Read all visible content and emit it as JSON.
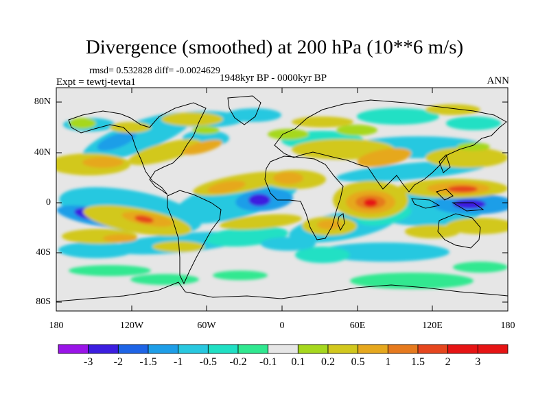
{
  "title": "Divergence (smoothed) at 200 hPa (10**6 m/s)",
  "stats": "rmsd= 0.532828 diff= -0.0024629",
  "experiment": "Expt = tewtj-tevta1",
  "period": "1948kyr BP - 0000kyr BP",
  "season": "ANN",
  "chart_data": {
    "type": "heatmap",
    "variable": "Divergence (smoothed) at 200 hPa",
    "units": "10**6 m/s",
    "projection": "cylindrical equidistant (global)",
    "x_ticks": [
      "180",
      "120W",
      "60W",
      "0",
      "60E",
      "120E",
      "180"
    ],
    "y_ticks": [
      "80N",
      "40N",
      "0",
      "40S",
      "80S"
    ],
    "lon_range": [
      -180,
      180
    ],
    "lat_range": [
      -90,
      90
    ],
    "colorbar": {
      "labels": [
        "-3",
        "-2",
        "-1.5",
        "-1",
        "-0.5",
        "-0.2",
        "-0.1",
        "0.1",
        "0.2",
        "0.5",
        "1",
        "1.5",
        "2",
        "3"
      ],
      "colors": [
        "#9a14e8",
        "#3c1ee0",
        "#1e64e6",
        "#1e9ee8",
        "#28c8e0",
        "#20e0c4",
        "#30e890",
        "#e6e6e6",
        "#a6d81e",
        "#d2c81e",
        "#e6a81e",
        "#e67a1e",
        "#e6461e",
        "#e61414"
      ]
    },
    "features": [
      {
        "name": "strong convergence minimum",
        "lon": -18,
        "lat": 0,
        "level": "-2"
      },
      {
        "name": "convergence minimum",
        "lon": 152,
        "lat": 0,
        "level": "-2"
      },
      {
        "name": "convergence minimum",
        "lon": -150,
        "lat": -10,
        "level": "-2"
      },
      {
        "name": "divergence maximum",
        "lon": 60,
        "lat": 0,
        "level": "3"
      },
      {
        "name": "divergence maximum",
        "lon": 128,
        "lat": 12,
        "level": "2"
      },
      {
        "name": "divergence maximum",
        "lon": -20,
        "lat": 15,
        "level": "1.5"
      },
      {
        "name": "divergence maximum",
        "lon": -128,
        "lat": -10,
        "level": "1.5"
      },
      {
        "name": "divergence maximum",
        "lon": 35,
        "lat": -20,
        "level": "1.5"
      }
    ]
  }
}
